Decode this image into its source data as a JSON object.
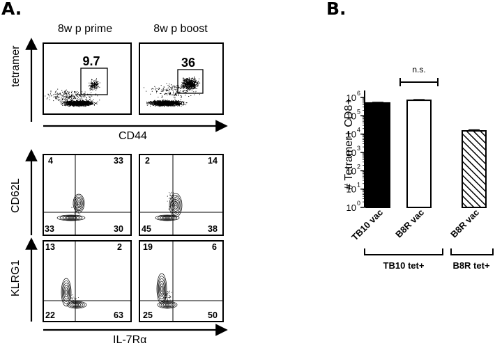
{
  "panels": {
    "a_label": "A.",
    "b_label": "B."
  },
  "flow": {
    "col_titles": [
      "8w p prime",
      "8w p boost"
    ],
    "tetramer_gate": [
      "9.7",
      "36"
    ],
    "tetramer_ylabel": "tetramer",
    "tetramer_xlabel": "CD44",
    "cd62l_ylabel": "CD62L",
    "klrg1_ylabel": "KLRG1",
    "bottom_xlabel": "IL-7Rα",
    "cd62l_quadrants": [
      {
        "tl": "4",
        "tr": "33",
        "bl": "33",
        "br": "30"
      },
      {
        "tl": "2",
        "tr": "14",
        "bl": "45",
        "br": "38"
      }
    ],
    "klrg1_quadrants": [
      {
        "tl": "13",
        "tr": "2",
        "bl": "22",
        "br": "63"
      },
      {
        "tl": "19",
        "tr": "6",
        "bl": "25",
        "br": "50"
      }
    ]
  },
  "chart_data": {
    "type": "bar",
    "categories": [
      "TB10 vac",
      "B8R vac",
      "B8R vac"
    ],
    "values": [
      500000,
      700000,
      15000
    ],
    "errors": [
      40000,
      60000,
      2000
    ],
    "fills": [
      "solid",
      "open",
      "hatched"
    ],
    "ylabel": "# Tetramer+ CD8+",
    "yscale": "log",
    "ylim": [
      1,
      1000000
    ],
    "yticks": [
      "10",
      "10",
      "10",
      "10",
      "10",
      "10",
      "10"
    ],
    "ytick_exps": [
      "0",
      "1",
      "2",
      "3",
      "4",
      "5",
      "6"
    ],
    "groups": [
      "TB10 tet+",
      "B8R  tet+"
    ],
    "annotation": "n.s."
  },
  "colors": {
    "ink": "#000000",
    "background": "#ffffff"
  }
}
